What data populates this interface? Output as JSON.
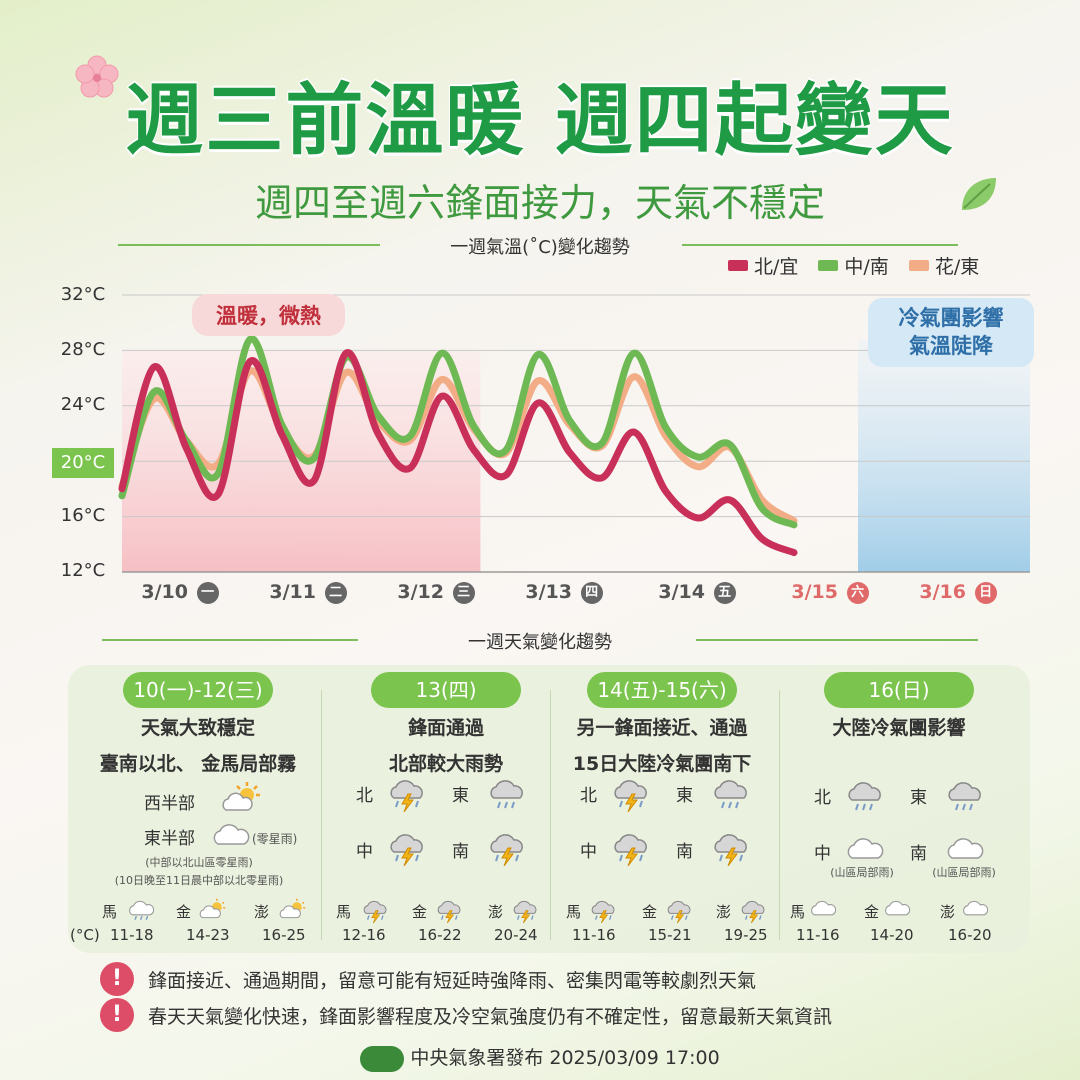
{
  "title": "週三前溫暖 週四起變天",
  "subtitle": "週四至週六鋒面接力，天氣不穩定",
  "chart_section_title": "一週氣溫(˚C)變化趨勢",
  "weather_section_title": "一週天氣變化趨勢",
  "colors": {
    "north": "#c8305a",
    "central": "#6fb955",
    "east": "#f3ad86",
    "accent": "#1f9a45",
    "warm_shade": "#f6b9bf",
    "cold_shade": "#9ccbe8"
  },
  "annotations": {
    "warm": "溫暖，微熱",
    "cold_line1": "冷氣團影響",
    "cold_line2": "氣溫陡降"
  },
  "chart_data": {
    "type": "line",
    "title": "一週氣溫(˚C)變化趨勢",
    "ylabel": "",
    "xlabel": "",
    "ylim": [
      12,
      32
    ],
    "y_ticks": [
      "32°C",
      "28°C",
      "24°C",
      "20°C",
      "16°C",
      "12°C"
    ],
    "categories": [
      {
        "date": "3/10",
        "wd": "一"
      },
      {
        "date": "3/11",
        "wd": "二"
      },
      {
        "date": "3/12",
        "wd": "三"
      },
      {
        "date": "3/13",
        "wd": "四"
      },
      {
        "date": "3/14",
        "wd": "五"
      },
      {
        "date": "3/15",
        "wd": "六"
      },
      {
        "date": "3/16",
        "wd": "日"
      }
    ],
    "legend": [
      "北/宜",
      "中/南",
      "花/東"
    ],
    "grid": true,
    "legend_position": "top-right",
    "series": [
      {
        "name": "北/宜",
        "x": [
          0,
          0.25,
          0.5,
          0.75,
          1,
          1.25,
          1.5,
          1.75,
          2,
          2.25,
          2.5,
          2.75,
          3,
          3.25,
          3.5,
          3.75,
          4,
          4.25,
          4.5,
          4.75,
          5,
          5.25,
          5.5,
          5.75,
          6,
          6.25,
          6.5
        ],
        "values": [
          18,
          26.8,
          21,
          17.6,
          27.2,
          21.9,
          18.6,
          27.8,
          22,
          19.5,
          24.7,
          20.8,
          19,
          24.2,
          20.6,
          18.8,
          22.1,
          17.8,
          15.9,
          17.2,
          14.4,
          13.4,
          13.4,
          13.4,
          13.4,
          13.4,
          13.4
        ]
      },
      {
        "name": "中/南",
        "x": [
          0,
          0.25,
          0.5,
          0.75,
          1,
          1.25,
          1.5,
          1.75,
          2,
          2.25,
          2.5,
          2.75,
          3,
          3.25,
          3.5,
          3.75,
          4,
          4.25,
          4.5,
          4.75,
          5,
          5.25,
          5.5,
          5.75,
          6,
          6.25,
          6.5
        ],
        "values": [
          17.5,
          25,
          21.5,
          19.1,
          28.8,
          22.6,
          20.2,
          27.5,
          23.3,
          21.8,
          27.8,
          22.5,
          20.8,
          27.7,
          22.9,
          21.3,
          27.8,
          22.4,
          20.3,
          21.2,
          16.6,
          15.4,
          15.4,
          15.4,
          15.4,
          15.4,
          15.4
        ]
      },
      {
        "name": "花/東",
        "x": [
          0,
          0.25,
          0.5,
          0.75,
          1,
          1.25,
          1.5,
          1.75,
          2,
          2.25,
          2.5,
          2.75,
          3,
          3.25,
          3.5,
          3.75,
          4,
          4.25,
          4.5,
          4.75,
          5,
          5.25,
          5.5,
          5.75,
          6,
          6.25,
          6.5
        ],
        "values": [
          18.2,
          24.5,
          21.5,
          19.8,
          26.5,
          22.3,
          20.4,
          26.4,
          22.9,
          21.5,
          25.9,
          22.3,
          20.6,
          25.8,
          22.6,
          21.1,
          26.1,
          21.8,
          19.6,
          21,
          17.2,
          15.7,
          15.7,
          15.7,
          15.7,
          15.7,
          15.7
        ]
      }
    ]
  },
  "weather_columns": [
    {
      "pill": "10(一)-12(三)",
      "line1": "天氣大致穩定",
      "line2": "臺南以北、 金馬局部霧",
      "regions": [
        {
          "label": "西半部",
          "icon": "sun-cloud-icon"
        },
        {
          "label": "東半部",
          "icon": "cloud-icon",
          "note": "(零星雨)"
        }
      ],
      "notes": [
        "(中部以北山區零星雨)",
        "(10日晚至11日晨中部以北零星雨)"
      ],
      "islands": [
        {
          "name": "馬",
          "range": "11-18",
          "icon": "cloud-rain-icon"
        },
        {
          "name": "金",
          "range": "14-23",
          "icon": "sun-cloud-icon"
        },
        {
          "name": "澎",
          "range": "16-25",
          "icon": "sun-cloud-icon"
        }
      ]
    },
    {
      "pill": "13(四)",
      "line1": "鋒面通過",
      "line2": "北部較大雨勢",
      "regions": [
        {
          "label": "北",
          "icon": "thunder-cloud-icon"
        },
        {
          "label": "東",
          "icon": "rain-cloud-icon"
        },
        {
          "label": "中",
          "icon": "thunder-cloud-icon"
        },
        {
          "label": "南",
          "icon": "thunder-cloud-icon"
        }
      ],
      "islands": [
        {
          "name": "馬",
          "range": "12-16",
          "icon": "thunder-cloud-icon"
        },
        {
          "name": "金",
          "range": "16-22",
          "icon": "thunder-cloud-icon"
        },
        {
          "name": "澎",
          "range": "20-24",
          "icon": "thunder-cloud-icon"
        }
      ]
    },
    {
      "pill": "14(五)-15(六)",
      "line1": "另一鋒面接近、通過",
      "line2": "15日大陸冷氣團南下",
      "regions": [
        {
          "label": "北",
          "icon": "thunder-cloud-icon"
        },
        {
          "label": "東",
          "icon": "rain-cloud-icon"
        },
        {
          "label": "中",
          "icon": "thunder-cloud-icon"
        },
        {
          "label": "南",
          "icon": "thunder-cloud-icon"
        }
      ],
      "islands": [
        {
          "name": "馬",
          "range": "11-16",
          "icon": "thunder-cloud-icon"
        },
        {
          "name": "金",
          "range": "15-21",
          "icon": "thunder-cloud-icon"
        },
        {
          "name": "澎",
          "range": "19-25",
          "icon": "thunder-cloud-icon"
        }
      ]
    },
    {
      "pill": "16(日)",
      "line1": "大陸冷氣團影響",
      "line2": "",
      "regions": [
        {
          "label": "北",
          "icon": "rain-cloud-icon"
        },
        {
          "label": "東",
          "icon": "rain-cloud-icon"
        },
        {
          "label": "中",
          "icon": "cloud-icon",
          "note": "(山區局部雨)"
        },
        {
          "label": "南",
          "icon": "cloud-icon",
          "note": "(山區局部雨)"
        }
      ],
      "islands": [
        {
          "name": "馬",
          "range": "11-16",
          "icon": "cloud-icon"
        },
        {
          "name": "金",
          "range": "14-20",
          "icon": "cloud-icon"
        },
        {
          "name": "澎",
          "range": "16-20",
          "icon": "cloud-icon"
        }
      ]
    }
  ],
  "unit_label": "(°C)",
  "warnings": [
    "鋒面接近、通過期間，留意可能有短延時強降雨、密集閃電等較劇烈天氣",
    "春天天氣變化快速，鋒面影響程度及冷空氣強度仍有不確定性，留意最新天氣資訊"
  ],
  "warning_mark": "!",
  "footer": "中央氣象署發布 2025/03/09 17:00"
}
